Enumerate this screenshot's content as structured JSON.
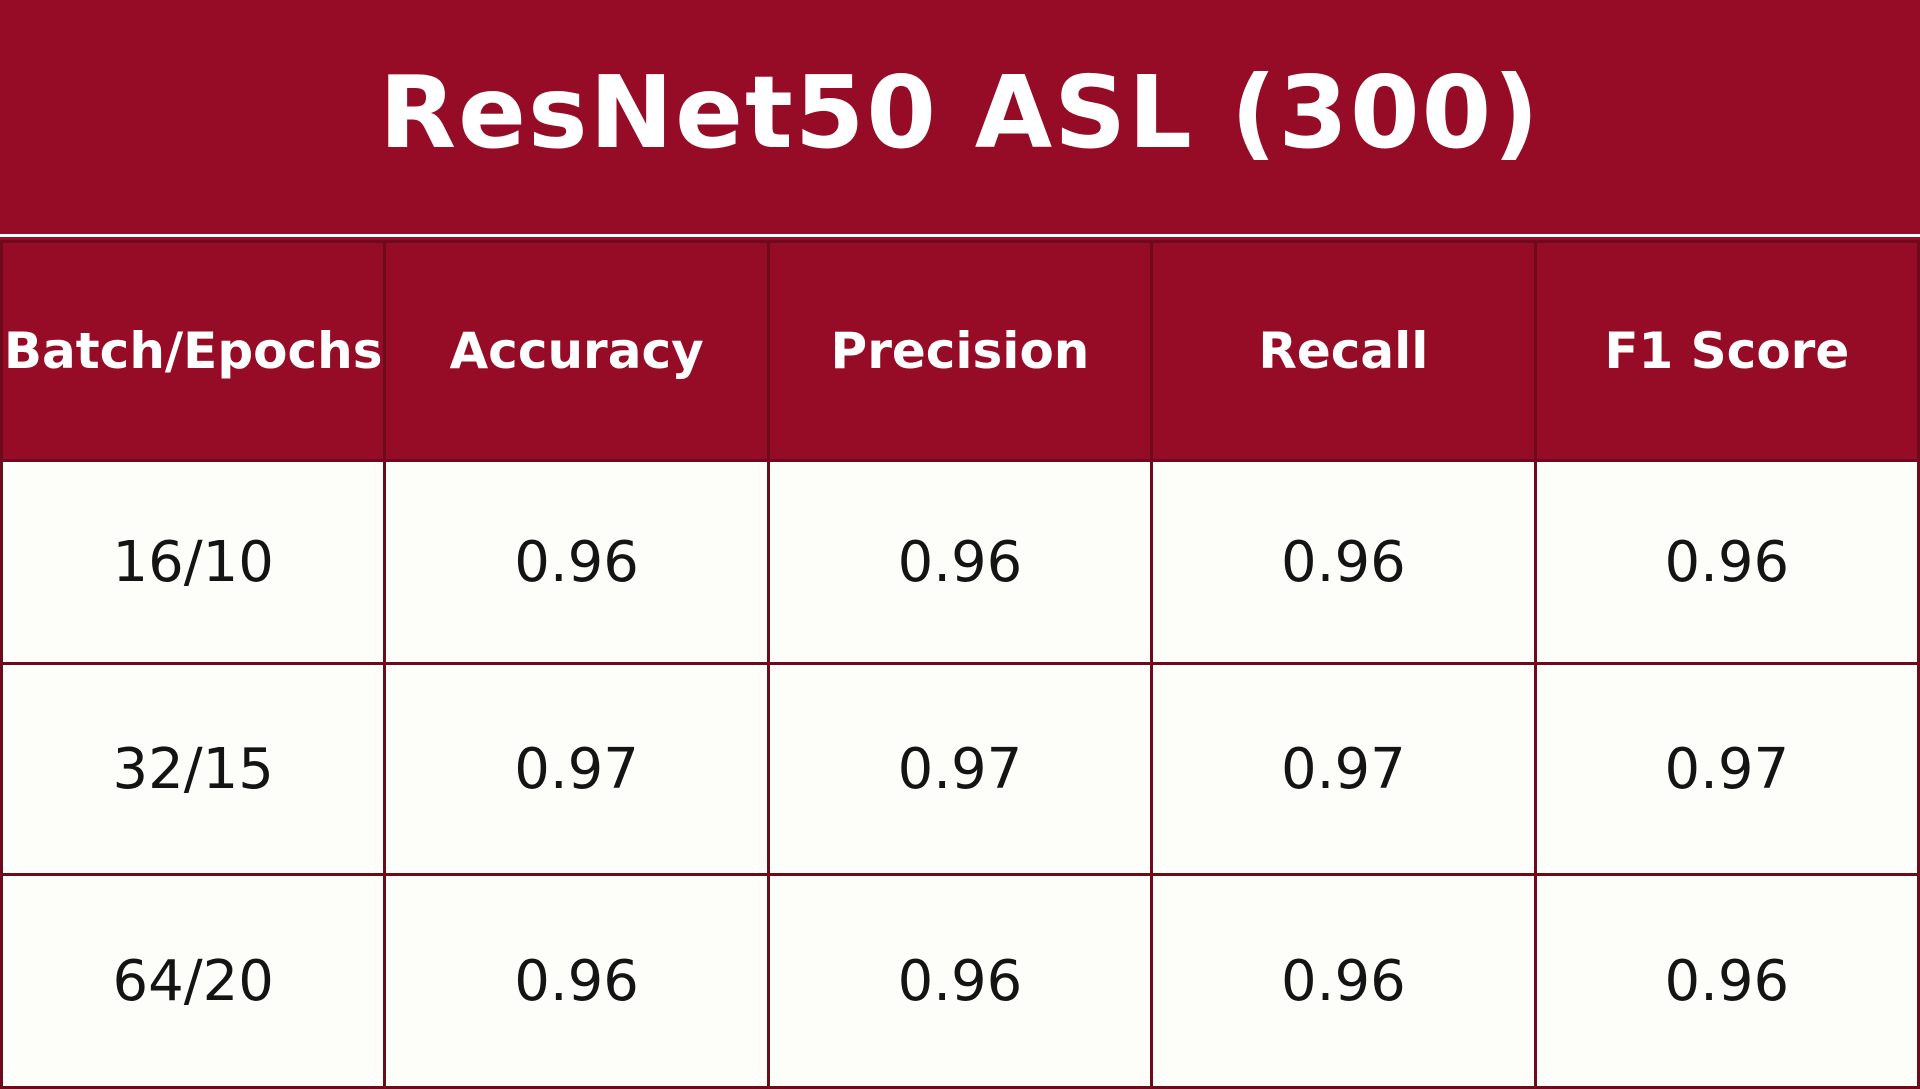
{
  "title": "ResNet50 ASL (300)",
  "table": {
    "headers": [
      "Batch/Epochs",
      "Accuracy",
      "Precision",
      "Recall",
      "F1 Score"
    ],
    "rows": [
      [
        "16/10",
        "0.96",
        "0.96",
        "0.96",
        "0.96"
      ],
      [
        "32/15",
        "0.97",
        "0.97",
        "0.97",
        "0.97"
      ],
      [
        "64/20",
        "0.96",
        "0.96",
        "0.96",
        "0.96"
      ]
    ]
  },
  "colors": {
    "brand_crimson": "#960c26",
    "cell_background": "#fdfdf9",
    "grid_line": "#6d0a1c",
    "text_dark": "#141414",
    "text_light": "#ffffff"
  }
}
